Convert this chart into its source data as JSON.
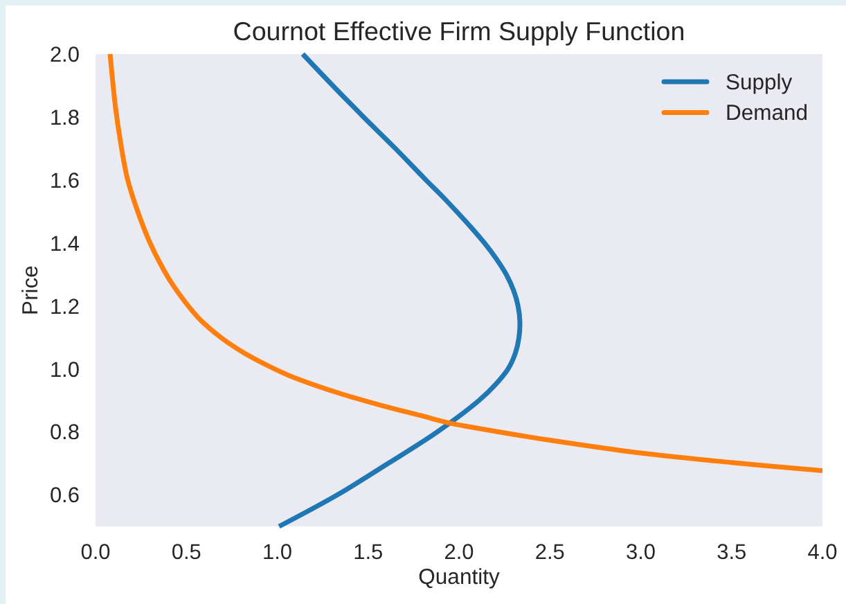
{
  "chart_data": {
    "type": "line",
    "title": "Cournot Effective Firm Supply Function",
    "xlabel": "Quantity",
    "ylabel": "Price",
    "series": [
      {
        "name": "Supply",
        "color": "#1f77b4",
        "x": [
          1.01,
          1.33,
          1.61,
          1.88,
          2.11,
          2.2,
          2.27,
          2.31,
          2.33,
          2.335,
          2.325,
          2.3,
          2.26,
          2.205,
          2.14,
          2.066,
          1.987,
          1.905,
          1.818,
          1.65,
          1.475,
          1.305,
          1.14
        ],
        "values": [
          0.5,
          0.6,
          0.7,
          0.8,
          0.9,
          0.95,
          1.0,
          1.05,
          1.1,
          1.15,
          1.2,
          1.25,
          1.3,
          1.35,
          1.4,
          1.45,
          1.5,
          1.55,
          1.6,
          1.7,
          1.8,
          1.9,
          2.0
        ]
      },
      {
        "name": "Demand",
        "color": "#ff7f0e",
        "x": [
          0.08,
          0.11,
          0.135,
          0.173,
          0.223,
          0.3,
          0.4,
          0.49,
          0.57,
          0.69,
          0.82,
          0.95,
          1.07,
          1.33,
          1.58,
          1.79,
          1.95,
          2.14,
          2.52,
          3.0,
          3.5,
          4.0
        ],
        "values": [
          2.0,
          1.83,
          1.73,
          1.61,
          1.515,
          1.4,
          1.29,
          1.215,
          1.16,
          1.1,
          1.05,
          1.01,
          0.978,
          0.925,
          0.883,
          0.852,
          0.828,
          0.808,
          0.772,
          0.733,
          0.703,
          0.677
        ]
      }
    ],
    "xlim": [
      0,
      4
    ],
    "ylim": [
      0.5,
      2.0
    ],
    "xticks": [
      {
        "value": 0,
        "label": "0.0"
      },
      0.5,
      {
        "value": 1,
        "label": "1.0"
      },
      1.5,
      {
        "value": 2,
        "label": "2.0"
      },
      2.5,
      {
        "value": 3,
        "label": "3.0"
      },
      3.5,
      {
        "value": 4,
        "label": "4.0"
      }
    ],
    "yticks": [
      0.6,
      0.8,
      {
        "value": 1,
        "label": "1.0"
      },
      1.2,
      1.4,
      1.6,
      1.8,
      {
        "value": 2,
        "label": "2.0"
      }
    ],
    "legend": "top right"
  }
}
